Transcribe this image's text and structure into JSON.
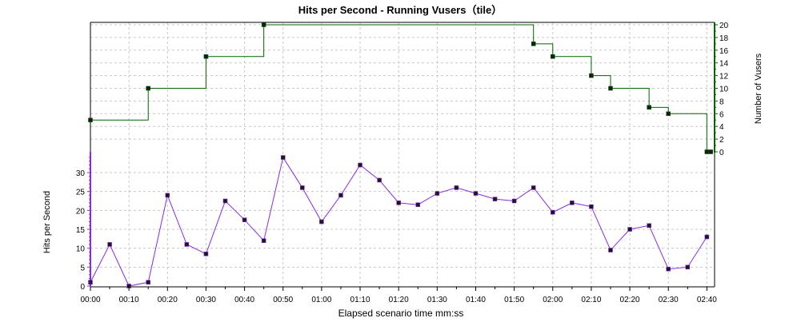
{
  "chart_data": {
    "title": "Hits per Second - Running Vusers（tile）",
    "xlabel": "Elapsed scenario time mm:ss",
    "x_ticks": [
      "00:00",
      "00:10",
      "00:20",
      "00:30",
      "00:40",
      "00:50",
      "01:00",
      "01:10",
      "01:20",
      "01:30",
      "01:40",
      "01:50",
      "02:00",
      "02:10",
      "02:20",
      "02:30",
      "02:40"
    ],
    "x_range_seconds": [
      0,
      162
    ],
    "grid": true,
    "top": {
      "type": "line",
      "line_style": "step",
      "color": "#006400",
      "ylabel": "Number of Vusers",
      "y_axis_side": "right",
      "ylim": [
        0,
        20
      ],
      "y_ticks": [
        "0",
        "2",
        "4",
        "6",
        "8",
        "10",
        "12",
        "14",
        "16",
        "18",
        "20"
      ],
      "series": [
        {
          "x": [
            "00:00",
            "00:15",
            "00:30",
            "00:45",
            "01:55",
            "02:00",
            "02:10",
            "02:15",
            "02:25",
            "02:30",
            "02:40",
            "02:41"
          ],
          "y": [
            5,
            10,
            15,
            20,
            17,
            15,
            12,
            10,
            7,
            6,
            0,
            0
          ]
        }
      ]
    },
    "bottom": {
      "type": "line",
      "color": "#8a2be2",
      "ylabel": "Hits per Second",
      "y_axis_side": "left",
      "ylim": [
        0,
        35
      ],
      "y_ticks": [
        "0",
        "5",
        "10",
        "15",
        "20",
        "25",
        "30"
      ],
      "series": [
        {
          "x": [
            "00:00",
            "00:05",
            "00:10",
            "00:15",
            "00:20",
            "00:25",
            "00:30",
            "00:35",
            "00:40",
            "00:45",
            "00:50",
            "00:55",
            "01:00",
            "01:05",
            "01:10",
            "01:15",
            "01:20",
            "01:25",
            "01:30",
            "01:35",
            "01:40",
            "01:45",
            "01:50",
            "01:55",
            "02:00",
            "02:05",
            "02:10",
            "02:15",
            "02:20",
            "02:25",
            "02:30",
            "02:35",
            "02:40"
          ],
          "y": [
            1,
            11,
            0,
            1,
            24,
            11,
            8.5,
            22.5,
            17.5,
            12,
            34,
            26,
            17,
            24,
            32,
            28,
            22,
            21.5,
            24.5,
            26,
            24.5,
            23,
            22.5,
            26,
            19.5,
            22,
            21,
            9.5,
            15,
            16,
            4.5,
            5,
            13
          ]
        }
      ]
    }
  }
}
